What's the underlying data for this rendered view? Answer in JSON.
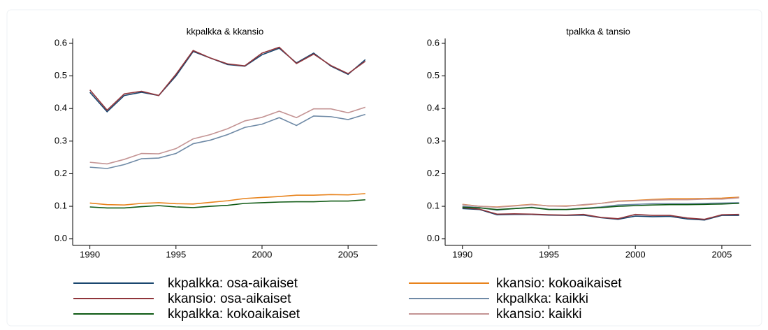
{
  "chart_data": [
    {
      "type": "line",
      "title": "kkpalkka & kkansio",
      "x": [
        1990,
        1991,
        1992,
        1993,
        1994,
        1995,
        1996,
        1997,
        1998,
        1999,
        2000,
        2001,
        2002,
        2003,
        2004,
        2005,
        2006
      ],
      "xlim": [
        1989,
        2006.7
      ],
      "xticks": [
        1990,
        1995,
        2000,
        2005
      ],
      "ylim": [
        -0.02,
        0.615
      ],
      "yticks": [
        {
          "value": 0,
          "label": "0.0"
        },
        0.1,
        0.2,
        0.3,
        0.4,
        0.5,
        0.6
      ],
      "series": [
        {
          "name": "kkpalkka: osa-aikaiset",
          "color": "#1a476f",
          "values": [
            0.45,
            0.39,
            0.44,
            0.45,
            0.44,
            0.5,
            0.575,
            0.555,
            0.535,
            0.53,
            0.565,
            0.585,
            0.54,
            0.57,
            0.53,
            0.505,
            0.55
          ]
        },
        {
          "name": "kkansio: kokoaikaiset",
          "color": "#e8831c",
          "values": [
            0.11,
            0.105,
            0.104,
            0.109,
            0.111,
            0.108,
            0.107,
            0.112,
            0.117,
            0.124,
            0.127,
            0.13,
            0.134,
            0.134,
            0.136,
            0.135,
            0.139
          ]
        },
        {
          "name": "kkansio: osa-aikaiset",
          "color": "#90353b",
          "values": [
            0.457,
            0.395,
            0.445,
            0.453,
            0.44,
            0.505,
            0.578,
            0.555,
            0.537,
            0.531,
            0.57,
            0.588,
            0.538,
            0.567,
            0.532,
            0.507,
            0.545
          ]
        },
        {
          "name": "kkpalkka: kaikki",
          "color": "#6f8aa6",
          "values": [
            0.22,
            0.216,
            0.228,
            0.246,
            0.248,
            0.262,
            0.292,
            0.303,
            0.32,
            0.342,
            0.352,
            0.372,
            0.348,
            0.377,
            0.375,
            0.366,
            0.382
          ]
        },
        {
          "name": "kkpalkka: kokoaikaiset",
          "color": "#0f5a14",
          "values": [
            0.098,
            0.095,
            0.095,
            0.099,
            0.102,
            0.098,
            0.096,
            0.1,
            0.103,
            0.109,
            0.111,
            0.113,
            0.114,
            0.114,
            0.116,
            0.116,
            0.12
          ]
        },
        {
          "name": "kkansio: kaikki",
          "color": "#c49494",
          "values": [
            0.235,
            0.23,
            0.244,
            0.262,
            0.261,
            0.277,
            0.307,
            0.32,
            0.338,
            0.362,
            0.373,
            0.392,
            0.372,
            0.399,
            0.399,
            0.387,
            0.404
          ]
        }
      ]
    },
    {
      "type": "line",
      "title": "tpalkka & tansio",
      "x": [
        1990,
        1991,
        1992,
        1993,
        1994,
        1995,
        1996,
        1997,
        1998,
        1999,
        2000,
        2001,
        2002,
        2003,
        2004,
        2005,
        2006
      ],
      "xlim": [
        1989,
        2006.7
      ],
      "xticks": [
        1990,
        1995,
        2000,
        2005
      ],
      "ylim": [
        -0.02,
        0.615
      ],
      "yticks": [
        {
          "value": 0,
          "label": "0.0"
        },
        0.1,
        0.2,
        0.3,
        0.4,
        0.5,
        0.6
      ],
      "series": [
        {
          "color": "#1a476f",
          "values": [
            0.093,
            0.09,
            0.074,
            0.075,
            0.075,
            0.073,
            0.072,
            0.073,
            0.065,
            0.06,
            0.07,
            0.068,
            0.069,
            0.061,
            0.058,
            0.072,
            0.072
          ]
        },
        {
          "color": "#e8831c",
          "values": [
            0.106,
            0.1,
            0.098,
            0.102,
            0.106,
            0.101,
            0.101,
            0.104,
            0.109,
            0.116,
            0.118,
            0.121,
            0.123,
            0.123,
            0.124,
            0.125,
            0.128
          ]
        },
        {
          "color": "#90353b",
          "values": [
            0.096,
            0.091,
            0.076,
            0.077,
            0.076,
            0.074,
            0.073,
            0.075,
            0.066,
            0.062,
            0.075,
            0.072,
            0.072,
            0.064,
            0.06,
            0.074,
            0.075
          ]
        },
        {
          "color": "#6f8aa6",
          "values": [
            0.1,
            0.096,
            0.088,
            0.093,
            0.097,
            0.091,
            0.09,
            0.094,
            0.098,
            0.104,
            0.106,
            0.108,
            0.108,
            0.108,
            0.109,
            0.11,
            0.111
          ]
        },
        {
          "color": "#0f5a14",
          "values": [
            0.097,
            0.095,
            0.09,
            0.093,
            0.096,
            0.09,
            0.09,
            0.093,
            0.096,
            0.1,
            0.102,
            0.104,
            0.105,
            0.105,
            0.106,
            0.107,
            0.109
          ]
        },
        {
          "color": "#c49494",
          "values": [
            0.105,
            0.1,
            0.097,
            0.101,
            0.105,
            0.101,
            0.1,
            0.105,
            0.109,
            0.115,
            0.117,
            0.119,
            0.12,
            0.12,
            0.122,
            0.122,
            0.126
          ]
        }
      ]
    }
  ]
}
